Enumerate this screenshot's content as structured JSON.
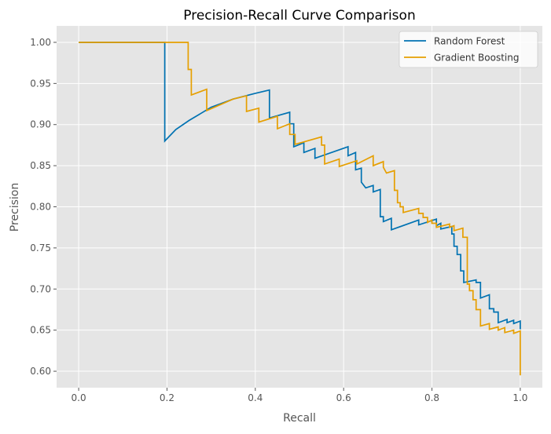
{
  "chart_data": {
    "type": "line",
    "title": "Precision-Recall Curve Comparison",
    "xlabel": "Recall",
    "ylabel": "Precision",
    "xlim": [
      -0.05,
      1.05
    ],
    "ylim": [
      0.58,
      1.02
    ],
    "xticks": [
      "0.0",
      "0.2",
      "0.4",
      "0.6",
      "0.8",
      "1.0"
    ],
    "yticks": [
      "0.60",
      "0.65",
      "0.70",
      "0.75",
      "0.80",
      "0.85",
      "0.90",
      "0.95",
      "1.00"
    ],
    "grid": true,
    "legend_position": "top-right",
    "background": "#E5E5E5",
    "series": [
      {
        "name": "Random Forest",
        "color": "#0072B2",
        "points": [
          [
            0,
            1
          ],
          [
            0.195,
            1
          ],
          [
            0.195,
            0.88
          ],
          [
            0.22,
            0.894
          ],
          [
            0.25,
            0.905
          ],
          [
            0.3,
            0.921
          ],
          [
            0.35,
            0.931
          ],
          [
            0.4,
            0.938
          ],
          [
            0.432,
            0.942
          ],
          [
            0.432,
            0.908
          ],
          [
            0.478,
            0.915
          ],
          [
            0.478,
            0.901
          ],
          [
            0.487,
            0.901
          ],
          [
            0.487,
            0.873
          ],
          [
            0.51,
            0.878
          ],
          [
            0.51,
            0.866
          ],
          [
            0.535,
            0.871
          ],
          [
            0.535,
            0.859
          ],
          [
            0.61,
            0.873
          ],
          [
            0.61,
            0.862
          ],
          [
            0.627,
            0.866
          ],
          [
            0.627,
            0.845
          ],
          [
            0.64,
            0.847
          ],
          [
            0.64,
            0.83
          ],
          [
            0.65,
            0.823
          ],
          [
            0.667,
            0.826
          ],
          [
            0.667,
            0.818
          ],
          [
            0.683,
            0.821
          ],
          [
            0.683,
            0.788
          ],
          [
            0.69,
            0.788
          ],
          [
            0.69,
            0.782
          ],
          [
            0.708,
            0.786
          ],
          [
            0.708,
            0.772
          ],
          [
            0.77,
            0.784
          ],
          [
            0.77,
            0.778
          ],
          [
            0.81,
            0.785
          ],
          [
            0.81,
            0.777
          ],
          [
            0.82,
            0.78
          ],
          [
            0.82,
            0.773
          ],
          [
            0.845,
            0.776
          ],
          [
            0.845,
            0.767
          ],
          [
            0.85,
            0.767
          ],
          [
            0.85,
            0.752
          ],
          [
            0.857,
            0.752
          ],
          [
            0.857,
            0.742
          ],
          [
            0.865,
            0.742
          ],
          [
            0.865,
            0.722
          ],
          [
            0.872,
            0.722
          ],
          [
            0.872,
            0.708
          ],
          [
            0.9,
            0.711
          ],
          [
            0.9,
            0.708
          ],
          [
            0.91,
            0.708
          ],
          [
            0.91,
            0.689
          ],
          [
            0.93,
            0.693
          ],
          [
            0.93,
            0.676
          ],
          [
            0.94,
            0.676
          ],
          [
            0.94,
            0.672
          ],
          [
            0.95,
            0.672
          ],
          [
            0.95,
            0.659
          ],
          [
            0.97,
            0.663
          ],
          [
            0.97,
            0.659
          ],
          [
            0.985,
            0.662
          ],
          [
            0.985,
            0.658
          ],
          [
            1.0,
            0.661
          ],
          [
            1.0,
            0.651
          ]
        ]
      },
      {
        "name": "Gradient Boosting",
        "color": "#E69F00",
        "points": [
          [
            0,
            1
          ],
          [
            0.248,
            1
          ],
          [
            0.248,
            0.967
          ],
          [
            0.255,
            0.967
          ],
          [
            0.255,
            0.936
          ],
          [
            0.29,
            0.943
          ],
          [
            0.29,
            0.917
          ],
          [
            0.35,
            0.931
          ],
          [
            0.38,
            0.935
          ],
          [
            0.38,
            0.916
          ],
          [
            0.408,
            0.92
          ],
          [
            0.408,
            0.903
          ],
          [
            0.45,
            0.91
          ],
          [
            0.45,
            0.895
          ],
          [
            0.478,
            0.901
          ],
          [
            0.478,
            0.888
          ],
          [
            0.49,
            0.888
          ],
          [
            0.49,
            0.876
          ],
          [
            0.55,
            0.885
          ],
          [
            0.55,
            0.875
          ],
          [
            0.557,
            0.875
          ],
          [
            0.557,
            0.852
          ],
          [
            0.59,
            0.858
          ],
          [
            0.59,
            0.849
          ],
          [
            0.63,
            0.856
          ],
          [
            0.63,
            0.852
          ],
          [
            0.667,
            0.862
          ],
          [
            0.667,
            0.85
          ],
          [
            0.69,
            0.855
          ],
          [
            0.69,
            0.848
          ],
          [
            0.697,
            0.841
          ],
          [
            0.715,
            0.844
          ],
          [
            0.715,
            0.82
          ],
          [
            0.722,
            0.82
          ],
          [
            0.722,
            0.805
          ],
          [
            0.728,
            0.805
          ],
          [
            0.728,
            0.8
          ],
          [
            0.735,
            0.8
          ],
          [
            0.735,
            0.793
          ],
          [
            0.77,
            0.798
          ],
          [
            0.77,
            0.792
          ],
          [
            0.78,
            0.792
          ],
          [
            0.78,
            0.787
          ],
          [
            0.79,
            0.787
          ],
          [
            0.79,
            0.781
          ],
          [
            0.8,
            0.784
          ],
          [
            0.8,
            0.78
          ],
          [
            0.81,
            0.78
          ],
          [
            0.81,
            0.775
          ],
          [
            0.84,
            0.779
          ],
          [
            0.84,
            0.775
          ],
          [
            0.85,
            0.777
          ],
          [
            0.85,
            0.771
          ],
          [
            0.87,
            0.774
          ],
          [
            0.87,
            0.763
          ],
          [
            0.88,
            0.763
          ],
          [
            0.88,
            0.706
          ],
          [
            0.885,
            0.706
          ],
          [
            0.885,
            0.698
          ],
          [
            0.893,
            0.698
          ],
          [
            0.893,
            0.687
          ],
          [
            0.9,
            0.687
          ],
          [
            0.9,
            0.675
          ],
          [
            0.91,
            0.675
          ],
          [
            0.91,
            0.655
          ],
          [
            0.93,
            0.658
          ],
          [
            0.93,
            0.651
          ],
          [
            0.95,
            0.654
          ],
          [
            0.95,
            0.65
          ],
          [
            0.965,
            0.653
          ],
          [
            0.965,
            0.647
          ],
          [
            0.985,
            0.65
          ],
          [
            0.985,
            0.646
          ],
          [
            1.0,
            0.649
          ],
          [
            1.0,
            0.595
          ]
        ]
      }
    ]
  }
}
